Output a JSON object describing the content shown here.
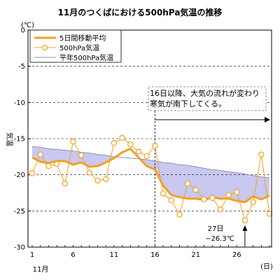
{
  "chart_data": {
    "type": "line",
    "title": "11月のつくばにおける500hPa気温の推移",
    "unit_label": "(℃)",
    "ylabel": "気温",
    "xunit": "(日)",
    "xmonth": "11月",
    "xlim": [
      1,
      30
    ],
    "ylim": [
      -30,
      0
    ],
    "yticks": [
      0,
      -5,
      -10,
      -15,
      -20,
      -25,
      -30
    ],
    "xticks": [
      1,
      6,
      11,
      16,
      21,
      26
    ],
    "grid": "horizontal dashed",
    "legend_position": "top-left",
    "x": [
      1,
      2,
      3,
      4,
      5,
      6,
      7,
      8,
      9,
      10,
      11,
      12,
      13,
      14,
      15,
      16,
      17,
      18,
      19,
      20,
      21,
      22,
      23,
      24,
      25,
      26,
      27,
      28,
      29,
      30
    ],
    "series": [
      {
        "name": "5日間移動平均",
        "color": "#f5a020",
        "values": [
          -17.6,
          -18.2,
          -18.4,
          -18.1,
          -18.1,
          -18.6,
          -18.3,
          -18.9,
          -18.8,
          -18.3,
          -17.7,
          -16.9,
          -16.4,
          -17.6,
          -18.8,
          -19.3,
          -21.5,
          -22.8,
          -23.1,
          -23.3,
          -23.3,
          -23.5,
          -23.1,
          -23.3,
          -23.3,
          -23.6,
          -23.8,
          -23.0,
          -23.4,
          -22.9
        ]
      },
      {
        "name": "500hPa気温",
        "color": "#f5a020",
        "values": [
          -19.8,
          -17.2,
          -18.8,
          -18.5,
          -21.2,
          -15.4,
          -17.3,
          -19.7,
          -20.8,
          -20.6,
          -15.6,
          -14.9,
          -15.8,
          -16.8,
          -17.4,
          -16.0,
          -22.6,
          -23.5,
          -25.5,
          -21.2,
          -22.1,
          -23.4,
          -23.2,
          -24.8,
          -22.8,
          -22.4,
          -26.3,
          -23.8,
          -17.2,
          -25.4
        ]
      },
      {
        "name": "平年500hPa気温",
        "color": "#9090c0",
        "values": [
          -16.1,
          -16.2,
          -16.4,
          -16.5,
          -16.6,
          -16.7,
          -16.9,
          -17.0,
          -17.2,
          -17.3,
          -17.5,
          -17.6,
          -17.7,
          -17.8,
          -17.9,
          -18.1,
          -18.3,
          -18.4,
          -18.6,
          -18.7,
          -18.9,
          -19.1,
          -19.3,
          -19.4,
          -19.6,
          -19.7,
          -19.9,
          -20.1,
          -20.3,
          -20.4
        ]
      }
    ],
    "annotations": {
      "note_line1": "16日以降、大気の流れが変わり",
      "note_line2": "寒気が南下してくる。",
      "min_day": "27日",
      "min_value": "−26.3℃"
    }
  }
}
